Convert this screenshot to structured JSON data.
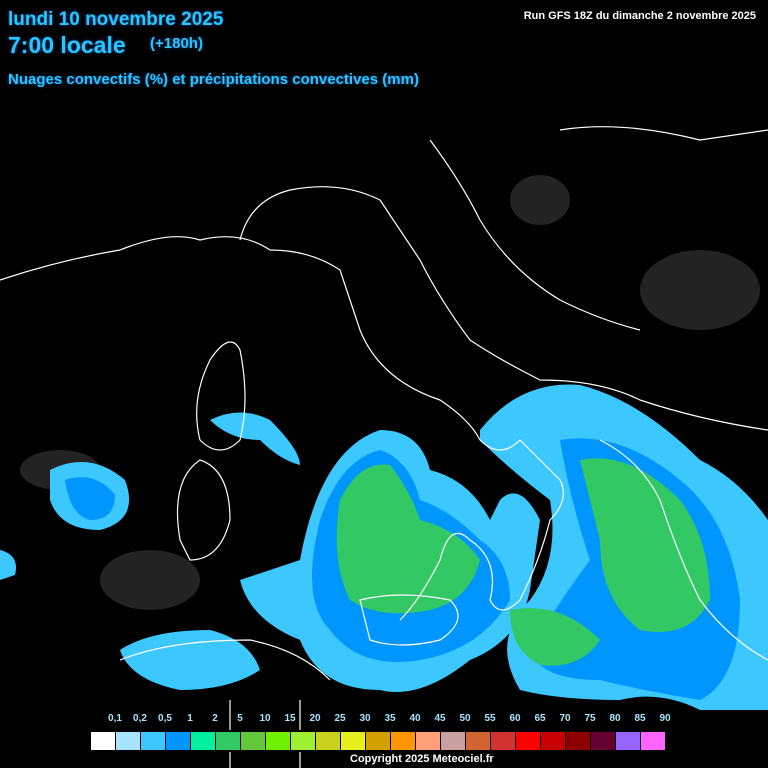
{
  "header": {
    "date": "lundi 10 novembre 2025",
    "time": "7:00 locale",
    "lead": "(+180h)",
    "parameter": "Nuages convectifs (%) et précipitations convectives (mm)",
    "run": "Run GFS 18Z du dimanche 2 novembre 2025"
  },
  "legend": {
    "labels": [
      "0,1",
      "0,2",
      "0,5",
      "1",
      "2",
      "5",
      "10",
      "15",
      "20",
      "25",
      "30",
      "35",
      "40",
      "45",
      "50",
      "55",
      "60",
      "65",
      "70",
      "75",
      "80",
      "85",
      "90"
    ],
    "colors": [
      "#ffffff",
      "#a8e4ff",
      "#3cc8ff",
      "#0096ff",
      "#00f0a0",
      "#32c864",
      "#64c83c",
      "#6ef000",
      "#a0f032",
      "#c8d21e",
      "#e6f01e",
      "#d2a000",
      "#ff9600",
      "#ffa078",
      "#c8a0a0",
      "#d26432",
      "#d23232",
      "#ff0000",
      "#c80000",
      "#8c0000",
      "#640032",
      "#9664ff",
      "#ff64ff"
    ]
  },
  "copyright": "Copyright 2025 Meteociel.fr",
  "colors": {
    "title": "#28c8ff",
    "coastline": "#ffffff",
    "background": "#000000"
  }
}
